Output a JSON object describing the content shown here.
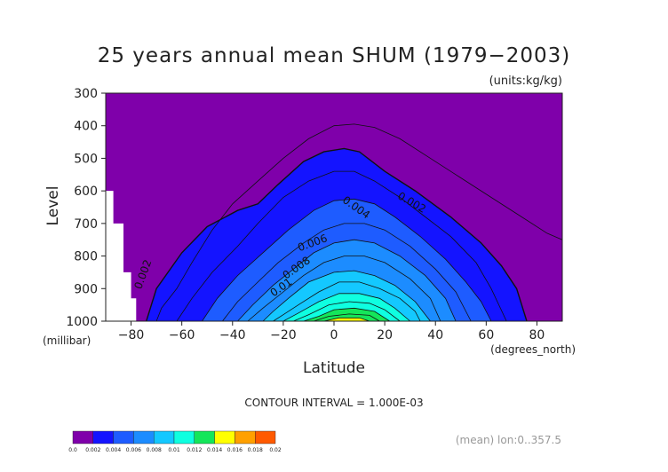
{
  "chart_data": {
    "type": "contour",
    "title": "25 years annual mean SHUM (1979−2003)",
    "units_label": "(units:kg/kg)",
    "xlabel": "Latitude",
    "ylabel": "Level",
    "x_units": "(degrees_north)",
    "y_units": "(millibar)",
    "xlim": [
      -90,
      90
    ],
    "ylim": [
      1000,
      300
    ],
    "x_ticks": [
      "−80",
      "−60",
      "−40",
      "−20",
      "0",
      "20",
      "40",
      "60",
      "80"
    ],
    "x_tick_values": [
      -80,
      -60,
      -40,
      -20,
      0,
      20,
      40,
      60,
      80
    ],
    "y_ticks": [
      "300",
      "400",
      "500",
      "600",
      "700",
      "800",
      "900",
      "1000"
    ],
    "y_tick_values": [
      300,
      400,
      500,
      600,
      700,
      800,
      900,
      1000
    ],
    "contour_interval_text": "CONTOUR INTERVAL = 1.000E-03",
    "footer_note": "(mean) lon:0..357.5",
    "contour_labels": [
      "0.002",
      "0.004",
      "0.006",
      "0.008",
      "0.01",
      "0.002"
    ],
    "colorbar": {
      "colors": [
        "#7f00aa",
        "#1414ff",
        "#1e5cff",
        "#1c8cff",
        "#14c8ff",
        "#0fffe0",
        "#14e65a",
        "#ffff00",
        "#ffa000",
        "#ff5a00",
        "#ff0000"
      ],
      "tick_labels": [
        "0.0",
        "0.002",
        "0.004",
        "0.006",
        "0.008",
        "0.01",
        "0.012",
        "0.014",
        "0.016",
        "0.018",
        "0.02"
      ]
    },
    "contours": [
      {
        "level": 0.001,
        "points": [
          [
            -70,
            1000
          ],
          [
            -68,
            960
          ],
          [
            -62,
            900
          ],
          [
            -56,
            820
          ],
          [
            -48,
            720
          ],
          [
            -40,
            640
          ],
          [
            -30,
            570
          ],
          [
            -20,
            500
          ],
          [
            -10,
            440
          ],
          [
            0,
            400
          ],
          [
            8,
            395
          ],
          [
            16,
            405
          ],
          [
            26,
            440
          ],
          [
            38,
            500
          ],
          [
            50,
            560
          ],
          [
            62,
            620
          ],
          [
            74,
            680
          ],
          [
            84,
            730
          ],
          [
            90,
            750
          ]
        ]
      },
      {
        "level": 0.002,
        "points": [
          [
            -74,
            1000
          ],
          [
            -70,
            900
          ],
          [
            -60,
            790
          ],
          [
            -50,
            710
          ],
          [
            -38,
            660
          ],
          [
            -30,
            640
          ],
          [
            -22,
            580
          ],
          [
            -12,
            510
          ],
          [
            -4,
            480
          ],
          [
            4,
            470
          ],
          [
            10,
            480
          ],
          [
            20,
            540
          ],
          [
            32,
            600
          ],
          [
            46,
            680
          ],
          [
            58,
            760
          ],
          [
            66,
            830
          ],
          [
            72,
            900
          ],
          [
            76,
            1000
          ]
        ]
      },
      {
        "level": 0.003,
        "points": [
          [
            -62,
            1000
          ],
          [
            -56,
            930
          ],
          [
            -48,
            850
          ],
          [
            -38,
            770
          ],
          [
            -30,
            700
          ],
          [
            -20,
            620
          ],
          [
            -10,
            570
          ],
          [
            0,
            540
          ],
          [
            8,
            540
          ],
          [
            16,
            570
          ],
          [
            26,
            620
          ],
          [
            36,
            680
          ],
          [
            46,
            740
          ],
          [
            56,
            820
          ],
          [
            62,
            900
          ],
          [
            68,
            1000
          ]
        ]
      },
      {
        "level": 0.004,
        "points": [
          [
            -52,
            1000
          ],
          [
            -46,
            930
          ],
          [
            -38,
            860
          ],
          [
            -28,
            790
          ],
          [
            -18,
            720
          ],
          [
            -8,
            660
          ],
          [
            0,
            630
          ],
          [
            8,
            625
          ],
          [
            16,
            640
          ],
          [
            24,
            680
          ],
          [
            34,
            740
          ],
          [
            44,
            810
          ],
          [
            52,
            880
          ],
          [
            58,
            940
          ],
          [
            62,
            1000
          ]
        ]
      },
      {
        "level": 0.005,
        "points": [
          [
            -44,
            1000
          ],
          [
            -38,
            940
          ],
          [
            -30,
            880
          ],
          [
            -22,
            820
          ],
          [
            -12,
            760
          ],
          [
            -4,
            720
          ],
          [
            4,
            700
          ],
          [
            12,
            700
          ],
          [
            20,
            720
          ],
          [
            30,
            770
          ],
          [
            40,
            840
          ],
          [
            48,
            910
          ],
          [
            54,
            1000
          ]
        ]
      },
      {
        "level": 0.006,
        "points": [
          [
            -38,
            1000
          ],
          [
            -32,
            950
          ],
          [
            -24,
            890
          ],
          [
            -16,
            840
          ],
          [
            -8,
            790
          ],
          [
            0,
            760
          ],
          [
            8,
            750
          ],
          [
            16,
            760
          ],
          [
            26,
            800
          ],
          [
            36,
            860
          ],
          [
            44,
            930
          ],
          [
            48,
            1000
          ]
        ]
      },
      {
        "level": 0.007,
        "points": [
          [
            -34,
            1000
          ],
          [
            -28,
            960
          ],
          [
            -20,
            910
          ],
          [
            -12,
            860
          ],
          [
            -4,
            820
          ],
          [
            4,
            800
          ],
          [
            12,
            800
          ],
          [
            20,
            820
          ],
          [
            30,
            870
          ],
          [
            38,
            930
          ],
          [
            42,
            1000
          ]
        ]
      },
      {
        "level": 0.008,
        "points": [
          [
            -28,
            1000
          ],
          [
            -24,
            970
          ],
          [
            -18,
            930
          ],
          [
            -10,
            880
          ],
          [
            0,
            850
          ],
          [
            8,
            845
          ],
          [
            16,
            860
          ],
          [
            24,
            890
          ],
          [
            32,
            940
          ],
          [
            38,
            1000
          ]
        ]
      },
      {
        "level": 0.009,
        "points": [
          [
            -24,
            1000
          ],
          [
            -20,
            980
          ],
          [
            -14,
            950
          ],
          [
            -6,
            910
          ],
          [
            2,
            880
          ],
          [
            10,
            880
          ],
          [
            18,
            900
          ],
          [
            26,
            930
          ],
          [
            32,
            970
          ],
          [
            34,
            1000
          ]
        ]
      },
      {
        "level": 0.01,
        "points": [
          [
            -20,
            1000
          ],
          [
            -14,
            975
          ],
          [
            -6,
            940
          ],
          [
            2,
            915
          ],
          [
            10,
            915
          ],
          [
            18,
            930
          ],
          [
            24,
            960
          ],
          [
            30,
            1000
          ]
        ]
      },
      {
        "level": 0.011,
        "points": [
          [
            -16,
            1000
          ],
          [
            -10,
            980
          ],
          [
            -2,
            950
          ],
          [
            6,
            940
          ],
          [
            14,
            945
          ],
          [
            20,
            965
          ],
          [
            26,
            1000
          ]
        ]
      },
      {
        "level": 0.012,
        "points": [
          [
            -12,
            1000
          ],
          [
            -6,
            985
          ],
          [
            0,
            965
          ],
          [
            8,
            960
          ],
          [
            16,
            970
          ],
          [
            22,
            1000
          ]
        ]
      },
      {
        "level": 0.013,
        "points": [
          [
            -8,
            1000
          ],
          [
            -2,
            985
          ],
          [
            6,
            978
          ],
          [
            14,
            982
          ],
          [
            18,
            1000
          ]
        ]
      },
      {
        "level": 0.014,
        "points": [
          [
            -4,
            1000
          ],
          [
            2,
            990
          ],
          [
            10,
            990
          ],
          [
            14,
            1000
          ]
        ]
      }
    ]
  }
}
